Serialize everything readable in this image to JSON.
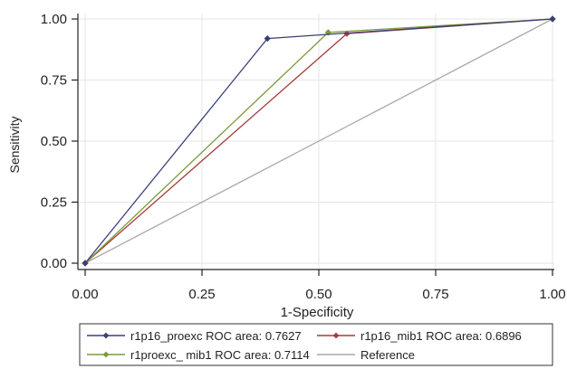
{
  "chart_data": {
    "type": "line",
    "title": "",
    "xlabel": "1-Specificity",
    "ylabel": "Sensitivity",
    "xlim": [
      0,
      1
    ],
    "ylim": [
      0,
      1
    ],
    "x_ticks": [
      "0.00",
      "0.25",
      "0.50",
      "0.75",
      "1.00"
    ],
    "y_ticks": [
      "0.00",
      "0.25",
      "0.50",
      "0.75",
      "1.00"
    ],
    "grid": true,
    "legend_position": "bottom",
    "series": [
      {
        "name": "r1p16_proexc ROC area: 0.7627",
        "color": "#3a3f7a",
        "marker": "diamond",
        "points": [
          [
            0,
            0
          ],
          [
            0.39,
            0.92
          ],
          [
            1,
            1
          ]
        ]
      },
      {
        "name": "r1p16_mib1 ROC area: 0.6896",
        "color": "#a83a3a",
        "marker": "diamond",
        "points": [
          [
            0,
            0
          ],
          [
            0.56,
            0.94
          ],
          [
            1,
            1
          ]
        ]
      },
      {
        "name": "r1proexc_ mib1 ROC area: 0.7114",
        "color": "#7a9a3a",
        "marker": "diamond",
        "points": [
          [
            0,
            0
          ],
          [
            0.52,
            0.945
          ],
          [
            1,
            1
          ]
        ]
      },
      {
        "name": "Reference",
        "color": "#a8a8a8",
        "marker": "none",
        "points": [
          [
            0,
            0
          ],
          [
            1,
            1
          ]
        ]
      }
    ],
    "legend_order": [
      0,
      1,
      2,
      3
    ]
  }
}
